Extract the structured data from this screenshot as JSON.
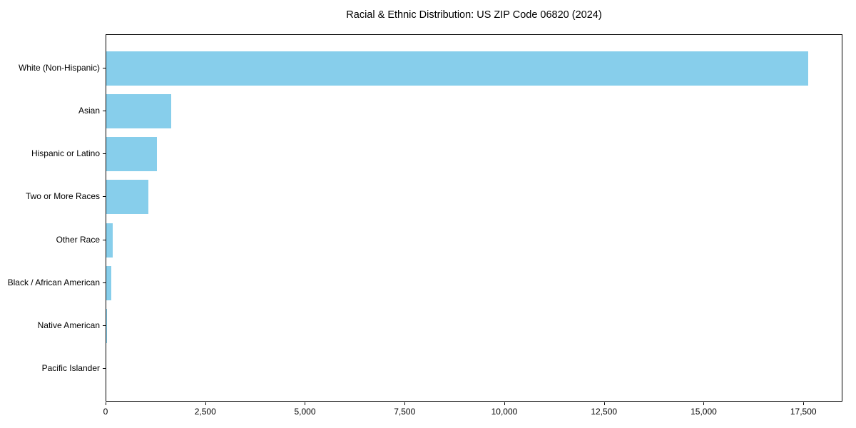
{
  "title": "Racial & Ethnic Distribution: US ZIP Code 06820 (2024)",
  "colors": {
    "bar": "#87CEEB",
    "background": "#FFFFFF",
    "axis": "#000000",
    "text": "#000000"
  },
  "chart_data": {
    "type": "bar",
    "orientation": "horizontal",
    "title": "Racial & Ethnic Distribution: US ZIP Code 06820 (2024)",
    "categories": [
      "White (Non-Hispanic)",
      "Asian",
      "Hispanic or Latino",
      "Two or More Races",
      "Other Race",
      "Black / African American",
      "Native American",
      "Pacific Islander"
    ],
    "values": [
      17600,
      1620,
      1270,
      1060,
      165,
      120,
      10,
      0
    ],
    "xlabel": "",
    "ylabel": "",
    "xlim": [
      0,
      18480
    ],
    "xticks": [
      0,
      2500,
      5000,
      7500,
      10000,
      12500,
      15000,
      17500
    ],
    "xtick_labels": [
      "0",
      "2,500",
      "5,000",
      "7,500",
      "10,000",
      "12,500",
      "15,000",
      "17,500"
    ],
    "bar_color": "#87CEEB",
    "grid": false,
    "legend": null
  }
}
